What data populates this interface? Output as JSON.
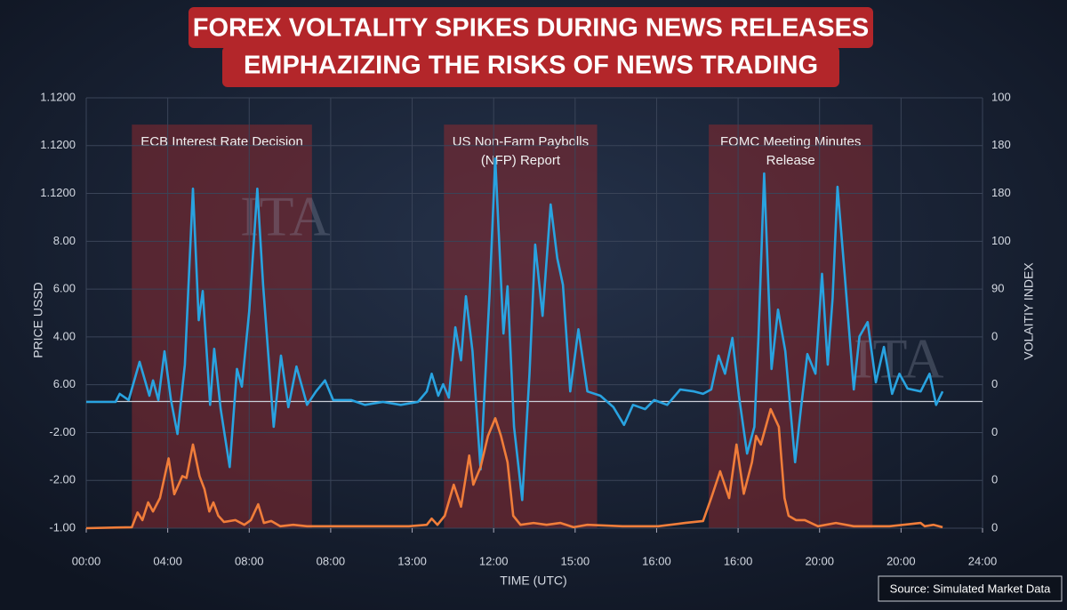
{
  "chart_data": {
    "type": "line",
    "title_lines": [
      "FOREX VOLTALITY SPIKES DURING NEWS RELEASES",
      "EMPHAZIZING THE RISKS OF NEWS TRADING"
    ],
    "ylabel": "PRICE USSD",
    "y2label": "VOLAITIY INDEX",
    "xlabel": "TIME (UTC)",
    "source": "Source: Simulated Market Data",
    "watermark": "ITA",
    "xlim": [
      0,
      11
    ],
    "xticks": [
      {
        "value": 0,
        "label": "00:00"
      },
      {
        "value": 1,
        "label": "04:00"
      },
      {
        "value": 2,
        "label": "08:00"
      },
      {
        "value": 3,
        "label": "08:00"
      },
      {
        "value": 4,
        "label": "13:00"
      },
      {
        "value": 5,
        "label": "12:00"
      },
      {
        "value": 6,
        "label": "15:00"
      },
      {
        "value": 7,
        "label": "16:00"
      },
      {
        "value": 8,
        "label": "16:00"
      },
      {
        "value": 9,
        "label": "20:00"
      },
      {
        "value": 10,
        "label": "20:00"
      },
      {
        "value": 11,
        "label": "24:00"
      }
    ],
    "ylim": [
      0,
      9
    ],
    "yticks": [
      {
        "value": 0,
        "label": "-1.00"
      },
      {
        "value": 1,
        "label": "-2.00"
      },
      {
        "value": 2,
        "label": "-2.00"
      },
      {
        "value": 3,
        "label": "6.00"
      },
      {
        "value": 4,
        "label": "4.00"
      },
      {
        "value": 5,
        "label": "6.00"
      },
      {
        "value": 6,
        "label": "8.00"
      },
      {
        "value": 7,
        "label": "1.1200"
      },
      {
        "value": 8,
        "label": "1.1200"
      },
      {
        "value": 9,
        "label": "1.1200"
      }
    ],
    "y2lim": [
      0,
      9
    ],
    "y2ticks": [
      {
        "value": 0,
        "label": "0"
      },
      {
        "value": 1,
        "label": "0"
      },
      {
        "value": 2,
        "label": "0"
      },
      {
        "value": 3,
        "label": "0"
      },
      {
        "value": 4,
        "label": "0"
      },
      {
        "value": 5,
        "label": "90"
      },
      {
        "value": 6,
        "label": "100"
      },
      {
        "value": 7,
        "label": "180"
      },
      {
        "value": 8,
        "label": "180"
      },
      {
        "value": 9,
        "label": "100"
      }
    ],
    "grid": true,
    "baseline": 2.65,
    "regions": [
      {
        "label_lines": [
          "ECB Interest Rate Decision"
        ],
        "x": [
          0.56,
          2.77
        ],
        "top": 8.44
      },
      {
        "label_lines": [
          "US Non-Farm Paybolls",
          "(NFP) Report"
        ],
        "x": [
          4.39,
          6.27
        ],
        "top": 8.44
      },
      {
        "label_lines": [
          "FOMC Meeting Minutes",
          "Release"
        ],
        "x": [
          7.64,
          9.65
        ],
        "top": 8.44
      }
    ],
    "series": [
      {
        "color": "#29a3e0",
        "x": [
          0,
          0.36,
          0.41,
          0.52,
          0.655,
          0.775,
          0.82,
          0.885,
          0.96,
          1.04,
          1.12,
          1.21,
          1.31,
          1.38,
          1.43,
          1.52,
          1.57,
          1.65,
          1.76,
          1.85,
          1.91,
          2.0,
          2.1,
          2.17,
          2.3,
          2.39,
          2.48,
          2.58,
          2.71,
          2.82,
          2.93,
          3.03,
          3.25,
          3.42,
          3.64,
          3.86,
          4.07,
          4.18,
          4.24,
          4.32,
          4.38,
          4.45,
          4.53,
          4.6,
          4.66,
          4.74,
          4.84,
          4.95,
          5.02,
          5.12,
          5.17,
          5.25,
          5.35,
          5.44,
          5.51,
          5.6,
          5.7,
          5.78,
          5.85,
          5.94,
          6.04,
          6.15,
          6.31,
          6.47,
          6.6,
          6.71,
          6.86,
          6.97,
          7.13,
          7.29,
          7.46,
          7.57,
          7.67,
          7.76,
          7.84,
          7.93,
          8.01,
          8.11,
          8.2,
          8.25,
          8.32,
          8.41,
          8.49,
          8.58,
          8.7,
          8.77,
          8.85,
          8.95,
          9.03,
          9.1,
          9.16,
          9.22,
          9.31,
          9.42,
          9.49,
          9.59,
          9.69,
          9.79,
          9.89,
          9.98,
          10.08,
          10.24,
          10.35,
          10.43,
          10.51
        ],
        "values": [
          2.64,
          2.64,
          2.81,
          2.68,
          3.48,
          2.77,
          3.09,
          2.68,
          3.7,
          2.68,
          1.97,
          3.42,
          7.1,
          4.35,
          4.96,
          2.58,
          3.75,
          2.49,
          1.28,
          3.33,
          2.96,
          4.54,
          7.1,
          5.09,
          2.12,
          3.61,
          2.53,
          3.38,
          2.58,
          2.86,
          3.09,
          2.68,
          2.68,
          2.58,
          2.64,
          2.58,
          2.64,
          2.86,
          3.23,
          2.77,
          3.01,
          2.73,
          4.2,
          3.51,
          4.85,
          3.7,
          1.23,
          4.91,
          7.73,
          4.07,
          5.06,
          2.12,
          0.59,
          3.23,
          5.93,
          4.44,
          6.77,
          5.65,
          5.09,
          2.86,
          4.16,
          2.86,
          2.77,
          2.53,
          2.16,
          2.58,
          2.49,
          2.68,
          2.58,
          2.9,
          2.86,
          2.81,
          2.9,
          3.61,
          3.23,
          3.98,
          2.77,
          1.56,
          2.12,
          3.98,
          7.42,
          3.33,
          4.57,
          3.7,
          1.38,
          2.49,
          3.64,
          3.23,
          5.32,
          3.42,
          4.81,
          7.14,
          5.28,
          2.9,
          4.01,
          4.31,
          3.05,
          3.79,
          2.81,
          3.23,
          2.92,
          2.86,
          3.23,
          2.58,
          2.86
        ]
      },
      {
        "color": "#f07d3a",
        "axis": "y2",
        "x": [
          0,
          0.56,
          0.63,
          0.69,
          0.76,
          0.82,
          0.905,
          1.01,
          1.08,
          1.18,
          1.23,
          1.31,
          1.39,
          1.45,
          1.51,
          1.56,
          1.62,
          1.69,
          1.83,
          1.94,
          2.02,
          2.11,
          2.18,
          2.27,
          2.38,
          2.54,
          2.71,
          3.09,
          3.53,
          3.96,
          4.18,
          4.24,
          4.31,
          4.4,
          4.51,
          4.6,
          4.7,
          4.75,
          4.84,
          4.93,
          5.02,
          5.09,
          5.17,
          5.24,
          5.33,
          5.49,
          5.65,
          5.82,
          5.98,
          6.15,
          6.58,
          7.02,
          7.35,
          7.57,
          7.67,
          7.78,
          7.89,
          7.98,
          8.07,
          8.17,
          8.22,
          8.28,
          8.4,
          8.5,
          8.57,
          8.62,
          8.71,
          8.82,
          8.98,
          9.2,
          9.42,
          9.86,
          10.24,
          10.29,
          10.4,
          10.51
        ],
        "values": [
          0,
          0.02,
          0.33,
          0.17,
          0.54,
          0.35,
          0.63,
          1.46,
          0.71,
          1.09,
          1.05,
          1.75,
          1.09,
          0.82,
          0.35,
          0.54,
          0.26,
          0.13,
          0.17,
          0.07,
          0.17,
          0.5,
          0.11,
          0.15,
          0.04,
          0.07,
          0.04,
          0.04,
          0.04,
          0.04,
          0.07,
          0.2,
          0.07,
          0.26,
          0.91,
          0.45,
          1.52,
          0.91,
          1.28,
          1.93,
          2.3,
          1.93,
          1.38,
          0.26,
          0.07,
          0.11,
          0.07,
          0.11,
          0.02,
          0.07,
          0.04,
          0.04,
          0.11,
          0.15,
          0.63,
          1.19,
          0.63,
          1.75,
          0.72,
          1.38,
          1.93,
          1.75,
          2.49,
          2.12,
          0.63,
          0.26,
          0.17,
          0.17,
          0.04,
          0.11,
          0.04,
          0.04,
          0.11,
          0.04,
          0.07,
          0.02
        ]
      }
    ]
  }
}
